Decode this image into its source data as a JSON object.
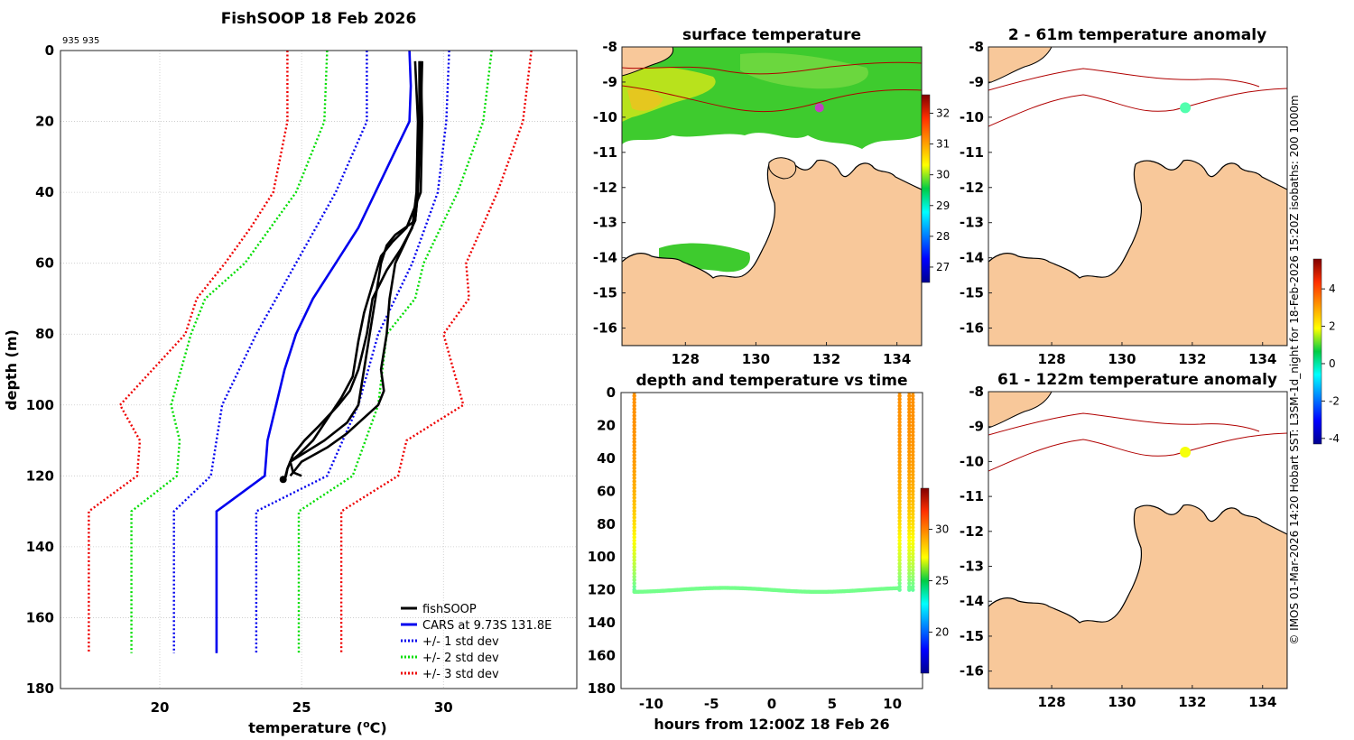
{
  "figure": {
    "title": "FishSOOP 18 Feb 2026",
    "id_label": "935 935",
    "credit": "© IMOS 01-Mar-2026 14:20 Hobart SST: L3SM-1d_night for 18-Feb-2026 15:20Z isobaths: 200  1000m"
  },
  "chart_data": [
    {
      "type": "line",
      "name": "profile",
      "title": "FishSOOP 18 Feb 2026",
      "xlabel": "temperature (°C)",
      "xlabel_main": "temperature (",
      "xlabel_sup": "o",
      "xlabel_end": "C)",
      "ylabel": "depth (m)",
      "xlim": [
        16.5,
        34.7
      ],
      "ylim": [
        180,
        0
      ],
      "xticks": [
        20,
        25,
        30
      ],
      "yticks": [
        0,
        20,
        40,
        60,
        80,
        100,
        120,
        140,
        160,
        180
      ],
      "grid": true,
      "legend_position": "bottom-right",
      "legend": [
        {
          "label": "fishSOOP",
          "color": "#000000",
          "style": "solid"
        },
        {
          "label": "CARS at 9.73S 131.8E",
          "color": "#0000ee",
          "style": "solid"
        },
        {
          "label": "+/- 1 std dev",
          "color": "#0000ee",
          "style": "dotted"
        },
        {
          "label": "+/- 2 std dev",
          "color": "#00dd00",
          "style": "dotted"
        },
        {
          "label": "+/- 3 std dev",
          "color": "#ee0000",
          "style": "dotted"
        }
      ],
      "series": [
        {
          "name": "CARS",
          "color": "#0000ee",
          "style": "solid",
          "depth": [
            0,
            10,
            20,
            30,
            40,
            50,
            60,
            70,
            80,
            90,
            100,
            110,
            120,
            130,
            170
          ],
          "temp": [
            28.8,
            28.85,
            28.8,
            28.2,
            27.6,
            27.0,
            26.2,
            25.4,
            24.8,
            24.4,
            24.1,
            23.8,
            23.7,
            22.0,
            22.0
          ]
        },
        {
          "name": "plus_1sd",
          "color": "#0000ee",
          "style": "dotted",
          "depth": [
            0,
            20,
            40,
            60,
            80,
            100,
            120,
            130,
            170
          ],
          "temp": [
            30.2,
            30.1,
            29.8,
            28.9,
            27.7,
            27.0,
            25.9,
            23.4,
            23.4
          ]
        },
        {
          "name": "minus_1sd",
          "color": "#0000ee",
          "style": "dotted",
          "depth": [
            0,
            20,
            40,
            60,
            80,
            100,
            120,
            130,
            170
          ],
          "temp": [
            27.3,
            27.3,
            26.2,
            24.8,
            23.4,
            22.2,
            21.8,
            20.5,
            20.5
          ]
        },
        {
          "name": "plus_2sd",
          "color": "#00dd00",
          "style": "dotted",
          "depth": [
            0,
            20,
            40,
            60,
            70,
            80,
            100,
            120,
            130,
            170
          ],
          "temp": [
            31.7,
            31.4,
            30.5,
            29.3,
            29.0,
            28.0,
            27.7,
            26.8,
            24.9,
            24.9
          ]
        },
        {
          "name": "minus_2sd",
          "color": "#00dd00",
          "style": "dotted",
          "depth": [
            0,
            20,
            40,
            60,
            70,
            80,
            100,
            110,
            120,
            130,
            170
          ],
          "temp": [
            25.9,
            25.8,
            24.8,
            23.0,
            21.6,
            21.1,
            20.4,
            20.7,
            20.6,
            19.0,
            19.0
          ]
        },
        {
          "name": "plus_3sd",
          "color": "#ee0000",
          "style": "dotted",
          "depth": [
            0,
            20,
            40,
            60,
            70,
            80,
            100,
            110,
            120,
            130,
            170
          ],
          "temp": [
            33.1,
            32.8,
            31.9,
            30.8,
            30.9,
            30.0,
            30.7,
            28.7,
            28.4,
            26.4,
            26.4
          ]
        },
        {
          "name": "minus_3sd",
          "color": "#ee0000",
          "style": "dotted",
          "depth": [
            0,
            20,
            40,
            50,
            60,
            70,
            80,
            100,
            110,
            120,
            130,
            170
          ],
          "temp": [
            24.5,
            24.5,
            24.0,
            23.2,
            22.3,
            21.3,
            20.9,
            18.6,
            19.3,
            19.2,
            17.5,
            17.5
          ]
        },
        {
          "name": "fishSOOP cast 1",
          "color": "#000000",
          "style": "thick",
          "depth": [
            3,
            20,
            40,
            48,
            52,
            55,
            60,
            70,
            80,
            90,
            100,
            105,
            110,
            114,
            116,
            118,
            121
          ],
          "temp": [
            29.25,
            29.2,
            29.1,
            29.0,
            28.3,
            28.0,
            27.8,
            27.6,
            27.4,
            27.2,
            27.0,
            26.6,
            25.8,
            25.0,
            24.6,
            24.5,
            24.4
          ]
        },
        {
          "name": "fishSOOP cast 2",
          "color": "#000000",
          "style": "thick",
          "depth": [
            3,
            20,
            40,
            48,
            55,
            60,
            70,
            80,
            90,
            96,
            100,
            108,
            112,
            116,
            118,
            120
          ],
          "temp": [
            29.15,
            29.15,
            29.1,
            29.0,
            28.6,
            28.3,
            28.1,
            28.0,
            27.8,
            27.9,
            27.7,
            26.6,
            25.9,
            25.0,
            24.8,
            24.6
          ]
        },
        {
          "name": "fishSOOP cast 3",
          "color": "#000000",
          "style": "thick",
          "depth": [
            3,
            20,
            40,
            50,
            56,
            62,
            70,
            80,
            90,
            96,
            100,
            106,
            110,
            114,
            118,
            120,
            121
          ],
          "temp": [
            29.0,
            29.1,
            29.05,
            28.9,
            28.5,
            28.0,
            27.5,
            27.3,
            27.0,
            26.7,
            26.3,
            25.6,
            25.1,
            24.7,
            24.5,
            24.45,
            24.4
          ]
        },
        {
          "name": "fishSOOP cast 4",
          "color": "#000000",
          "style": "thick",
          "depth": [
            3,
            20,
            40,
            50,
            54,
            58,
            66,
            74,
            82,
            92,
            98,
            104,
            110,
            114,
            116,
            119,
            120
          ],
          "temp": [
            29.2,
            29.25,
            29.2,
            28.7,
            28.2,
            27.8,
            27.5,
            27.2,
            27.0,
            26.8,
            26.4,
            25.9,
            25.4,
            24.9,
            24.6,
            24.7,
            25.0
          ]
        }
      ]
    },
    {
      "type": "scatter",
      "name": "depth_time",
      "title": "depth and temperature vs time",
      "xlabel": "hours from 12:00Z 18 Feb 26",
      "ylabel": "",
      "xlim": [
        -12.5,
        12.5
      ],
      "ylim": [
        180,
        0
      ],
      "xticks": [
        -10,
        -5,
        0,
        5,
        10
      ],
      "yticks": [
        0,
        20,
        40,
        60,
        80,
        100,
        120,
        140,
        160,
        180
      ],
      "colorbar": {
        "min": 16,
        "max": 34,
        "ticks": [
          20,
          25,
          30
        ]
      },
      "tows": [
        {
          "descent_hour": -11.4,
          "ascent_hour": 10.6,
          "bottom_depth": 120,
          "bottom_temp": 24.5,
          "surface_temp": 29.2
        },
        {
          "descent_hour": 11.4,
          "ascent_hour": 11.7,
          "bottom_depth": 120,
          "bottom_temp": 24.5,
          "surface_temp": 29.2
        }
      ]
    },
    {
      "type": "heatmap",
      "name": "sst_map",
      "title": "surface temperature",
      "xlim": [
        126.2,
        134.7
      ],
      "ylim": [
        -16.5,
        -8
      ],
      "xticks": [
        128,
        130,
        132,
        134
      ],
      "yticks": [
        -8,
        -9,
        -10,
        -11,
        -12,
        -13,
        -14,
        -15,
        -16
      ],
      "colorbar": {
        "min": 26.5,
        "max": 32.6,
        "ticks": [
          27,
          28,
          29,
          30,
          31,
          32
        ]
      },
      "marker": {
        "lon": 131.8,
        "lat": -9.73
      }
    },
    {
      "type": "heatmap",
      "name": "anom_upper",
      "title": "2 - 61m temperature anomaly",
      "xlim": [
        126.2,
        134.7
      ],
      "ylim": [
        -16.5,
        -8
      ],
      "xticks": [
        128,
        130,
        132,
        134
      ],
      "yticks": [
        -8,
        -9,
        -10,
        -11,
        -12,
        -13,
        -14,
        -15,
        -16
      ],
      "marker": {
        "lon": 131.8,
        "lat": -9.73,
        "anomaly": 0.2
      }
    },
    {
      "type": "heatmap",
      "name": "anom_lower",
      "title": "61 - 122m temperature anomaly",
      "xlim": [
        126.2,
        134.7
      ],
      "ylim": [
        -16.5,
        -8
      ],
      "xticks": [
        128,
        130,
        132,
        134
      ],
      "yticks": [
        -8,
        -9,
        -10,
        -11,
        -12,
        -13,
        -14,
        -15,
        -16
      ],
      "marker": {
        "lon": 131.8,
        "lat": -9.73,
        "anomaly": 1.8
      }
    },
    {
      "type": "colorbar",
      "name": "anomaly_colorbar",
      "min": -4.3,
      "max": 5.6,
      "ticks": [
        -4,
        -2,
        0,
        2,
        4
      ]
    }
  ],
  "colors": {
    "land": "#f8c89a",
    "coast": "#000000",
    "isobath": "#b00000",
    "grid": "#c8c8c8"
  }
}
